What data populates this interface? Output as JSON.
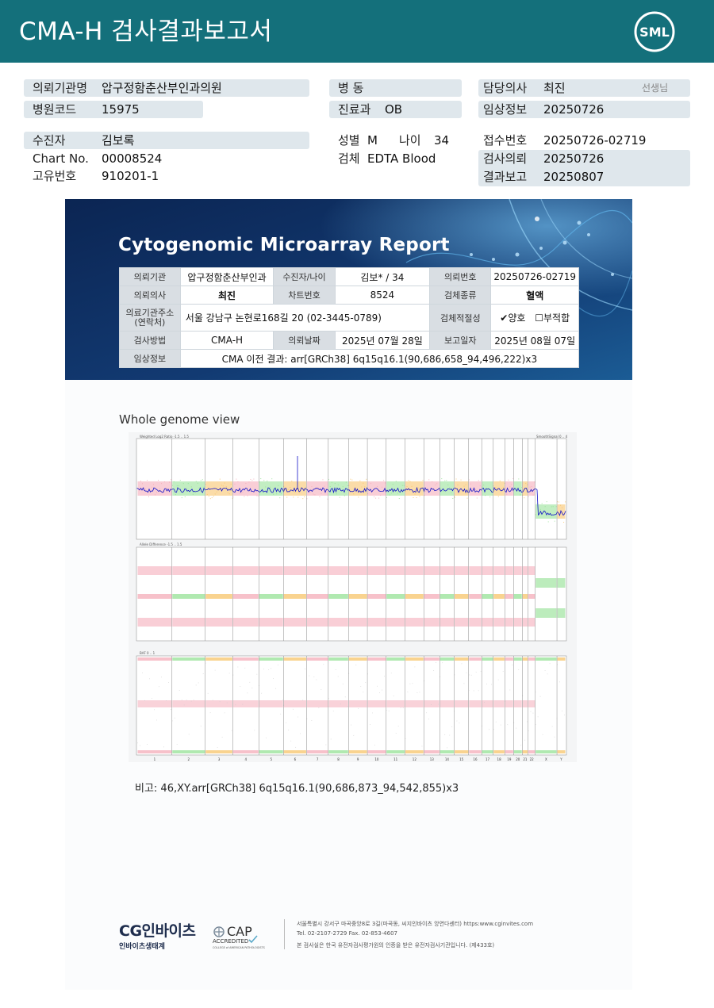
{
  "header": {
    "title": "CMA-H 검사결과보고서",
    "logo_text": "SML"
  },
  "patient_info": {
    "request_org_label": "의뢰기관명",
    "request_org": "압구정함춘산부인과의원",
    "hospital_code_label": "병원코드",
    "hospital_code": "15975",
    "ward_label": "병 동",
    "ward": "",
    "dept_label": "진료과",
    "dept": "OB",
    "doctor_label": "담당의사",
    "doctor": "최진",
    "doctor_suffix": "선생님",
    "clinical_label": "임상정보",
    "clinical": "20250726",
    "patient_label": "수진자",
    "patient": "김보록",
    "chart_label": "Chart No.",
    "chart": "00008524",
    "id_label": "고유번호",
    "id_value": "910201-1",
    "sex_label": "성별",
    "sex": "M",
    "age_label": "나이",
    "age": "34",
    "specimen_label": "검체",
    "specimen": "EDTA Blood",
    "receipt_label": "접수번호",
    "receipt": "20250726-02719",
    "test_request_label": "검사의뢰",
    "test_request": "20250726",
    "result_report_label": "결과보고",
    "result_report": "20250807"
  },
  "report": {
    "title": "Cytogenomic Microarray Report",
    "table": {
      "r1": {
        "k1": "의뢰기관",
        "v1": "압구정함춘산부인과",
        "k2": "수진자/나이",
        "v2": "김보* / 34",
        "k3": "의뢰번호",
        "v3": "20250726-02719"
      },
      "r2": {
        "k1": "의뢰의사",
        "v1": "최진",
        "k2": "차트번호",
        "v2": "8524",
        "k3": "검체종류",
        "v3": "혈액"
      },
      "r3": {
        "k1": "의료기관주소 (연락처)",
        "v1": "서울 강남구 논현로168길 20 (02-3445-0789)",
        "k3": "검체적절성",
        "check_ok": "✔",
        "ok_label": "양호",
        "check_bad": "☐",
        "bad_label": "부적합"
      },
      "r4": {
        "k1": "검사방법",
        "v1": "CMA-H",
        "k2": "의뢰날짜",
        "v2": "2025년 07월 28일",
        "k3": "보고일자",
        "v3": "2025년 08월 07일"
      },
      "r5": {
        "k1": "임상정보",
        "v1": "CMA 이전 결과: arr[GRCh38] 6q15q16.1(90,686,658_94,496,222)x3"
      }
    },
    "whole_genome_title": "Whole genome view",
    "genome_panels": {
      "p1": "Weighted Log2 Ratio -1.5 .. 1.5",
      "p1r": "SmoothSignal 0 .. 4",
      "p2": "Allele Difference -1.5 .. 1.5",
      "p3": "BAF 0 .. 1"
    },
    "chromosomes": [
      "1",
      "2",
      "3",
      "4",
      "5",
      "6",
      "7",
      "8",
      "9",
      "10",
      "11",
      "12",
      "13",
      "14",
      "15",
      "16",
      "17",
      "18",
      "19",
      "20",
      "21",
      "22",
      "X",
      "Y"
    ],
    "note": "비고: 46,XY.arr[GRCh38] 6q15q16.1(90,686,873_94,542,855)x3"
  },
  "footer": {
    "company": "CG인바이츠",
    "company_sub": "인바이츠생태계",
    "cap": "CAP",
    "cap_sub": "ACCREDITED",
    "cap_sub2": "COLLEGE of AMERICAN PATHOLOGISTS",
    "address": "서울특별시 강서구 마곡중앙8로 3길(마곡동, 씨지인바이츠 앙연다센터)  https:www.cginvites.com",
    "tel": "Tel. 02-2107-2729   Fax. 02-853-4607",
    "cert": "본 검사실은 한국 유전자검사평가원의 인증을 받은 유전자검사기관입니다. (제433호)"
  },
  "colors": {
    "teal": "#14707b",
    "banner": "#0e2c59",
    "chart_blue": "#1414c8"
  }
}
